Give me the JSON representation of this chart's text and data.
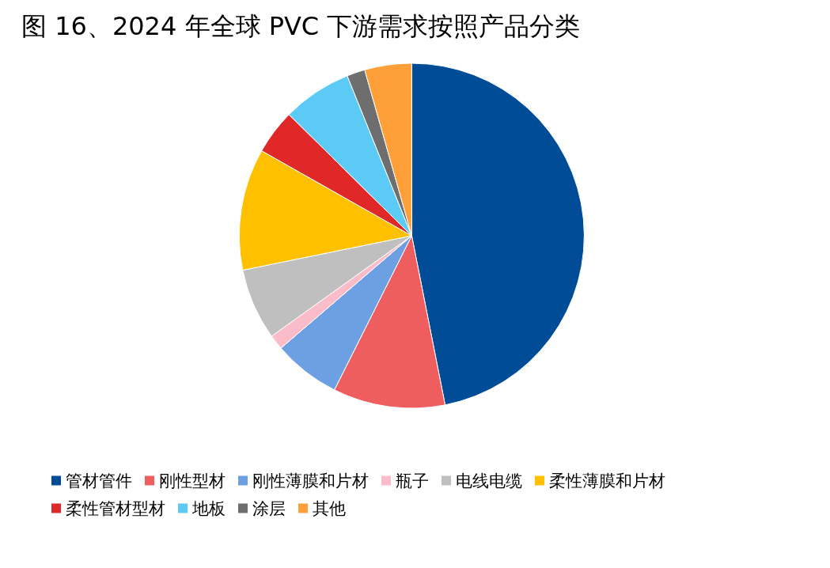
{
  "chart_data": {
    "type": "pie",
    "title": "图 16、2024 年全球 PVC 下游需求按照产品分类",
    "categories": [
      "管材管件",
      "刚性型材",
      "刚性薄膜和片材",
      "瓶子",
      "电线电缆",
      "柔性薄膜和片材",
      "柔性管材型材",
      "地板",
      "涂层",
      "其他"
    ],
    "values": [
      46.9,
      10.5,
      6.3,
      1.4,
      6.7,
      11.4,
      4.2,
      6.5,
      1.7,
      4.4
    ],
    "colors": [
      "#004c97",
      "#ee5e5e",
      "#6ca0e2",
      "#f9bcc8",
      "#bfbfbf",
      "#ffc000",
      "#e02828",
      "#5bcbf5",
      "#6e6e6e",
      "#ff9f3a"
    ],
    "legend": "bottom"
  }
}
